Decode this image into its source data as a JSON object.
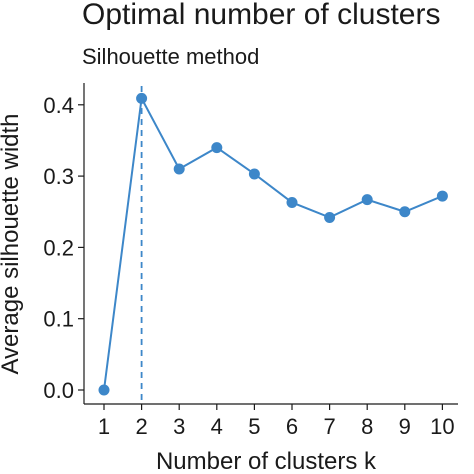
{
  "chart_data": {
    "type": "line",
    "title": "Optimal number of clusters",
    "subtitle": "Silhouette method",
    "xlabel": "Number of clusters k",
    "ylabel": "Average silhouette width",
    "x": [
      1,
      2,
      3,
      4,
      5,
      6,
      7,
      8,
      9,
      10
    ],
    "y": [
      0.0,
      0.409,
      0.31,
      0.34,
      0.303,
      0.263,
      0.242,
      0.267,
      0.25,
      0.272
    ],
    "ylim": [
      0,
      0.4
    ],
    "y_ticks": [
      "0.0",
      "0.1",
      "0.2",
      "0.3",
      "0.4"
    ],
    "x_ticks": [
      "1",
      "2",
      "3",
      "4",
      "5",
      "6",
      "7",
      "8",
      "9",
      "10"
    ],
    "optimal_k": 2,
    "color": "#3d87c9",
    "grid": false
  }
}
